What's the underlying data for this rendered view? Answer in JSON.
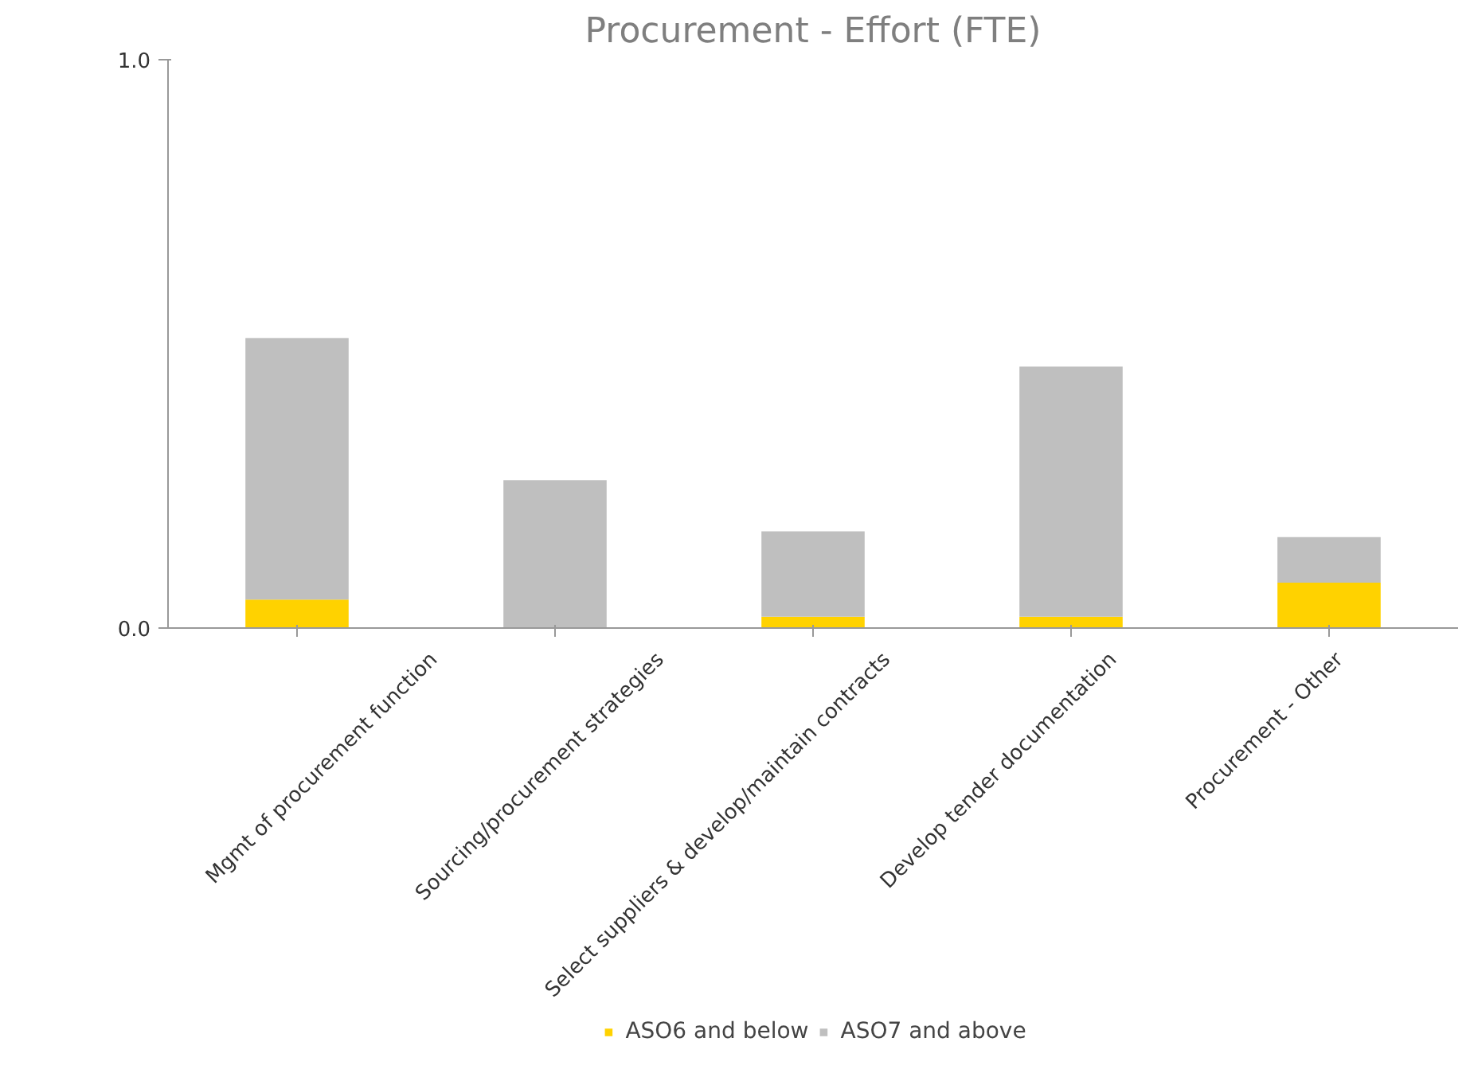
{
  "chart_data": {
    "type": "bar",
    "title": "Procurement - Effort (FTE)",
    "stacked": true,
    "categories": [
      "Mgmt of procurement function",
      "Sourcing/procurement strategies",
      "Select suppliers & develop/maintain contracts",
      "Develop tender documentation",
      "Procurement - Other"
    ],
    "series": [
      {
        "name": "ASO6 and below",
        "color": "#ffd200",
        "values": [
          0.05,
          0,
          0.02,
          0.02,
          0.08
        ]
      },
      {
        "name": "ASO7 and above",
        "color": "#bfbfbf",
        "values": [
          0.46,
          0.26,
          0.15,
          0.44,
          0.08
        ]
      }
    ],
    "ylim": [
      0,
      1
    ],
    "yticks": [
      {
        "value": 0,
        "label": "0.0"
      },
      {
        "value": 1,
        "label": "1.0"
      }
    ],
    "grid": false,
    "legend": "bottom"
  }
}
